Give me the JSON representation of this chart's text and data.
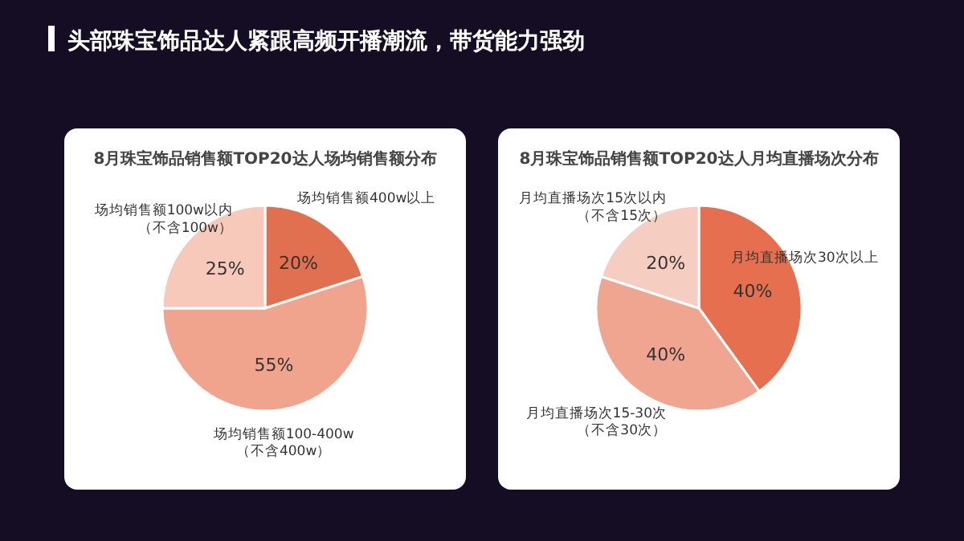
{
  "chart_data": [
    {
      "type": "other",
      "title": "头部珠宝饰品达人紧跟高频开播潮流，带货能力强劲"
    },
    {
      "type": "pie",
      "title": "8月珠宝饰品销售额TOP20达人场均销售额分布",
      "categories": [
        "场均销售额400w以上",
        "场均销售额100-400w（不含400w）",
        "场均销售额100w以内（不含100w）"
      ],
      "values": [
        20,
        55,
        25
      ],
      "colors": [
        "#e0704f",
        "#f0a48e",
        "#f6c9bb"
      ],
      "value_labels": [
        "20%",
        "55%",
        "25%"
      ]
    },
    {
      "type": "pie",
      "title": "8月珠宝饰品销售额TOP20达人月均直播场次分布",
      "categories": [
        "月均直播场次30次以上",
        "月均直播场次15-30次（不含30次）",
        "月均直播场次15次以内（不含15次）"
      ],
      "values": [
        40,
        40,
        20
      ],
      "colors": [
        "#e56f4e",
        "#efa58f",
        "#f5cdc1"
      ],
      "value_labels": [
        "40%",
        "40%",
        "20%"
      ]
    }
  ]
}
